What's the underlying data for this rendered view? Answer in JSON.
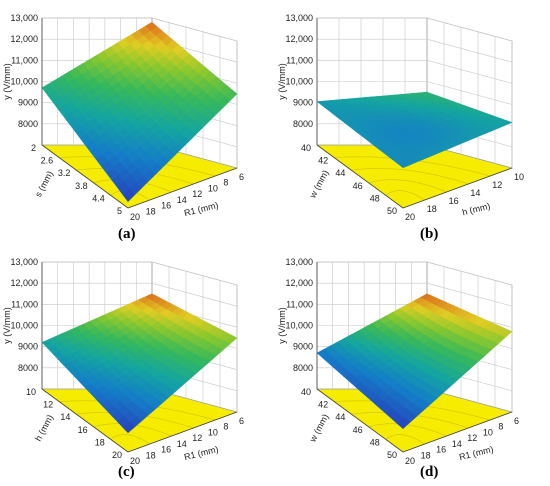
{
  "chart_data": [
    {
      "panel": "(a)",
      "type": "surface3d",
      "zlabel": "y (V/mm)",
      "zticks": [
        "8000",
        "9000",
        "10,000",
        "11,000",
        "12,000",
        "13,000"
      ],
      "zlim": [
        7000,
        13000
      ],
      "front_axis": {
        "label": "s (mm)",
        "ticks": [
          "2",
          "2.6",
          "3.2",
          "3.8",
          "4.4",
          "5"
        ]
      },
      "right_axis": {
        "label": "R1 (mm)",
        "ticks": [
          "6",
          "8",
          "10",
          "12",
          "14",
          "16",
          "18",
          "20"
        ]
      },
      "surface": {
        "corner_back": 12800,
        "corner_left": 9700,
        "corner_front": 7300,
        "corner_right": 10500
      },
      "floor_color": "#f5ec00"
    },
    {
      "panel": "(b)",
      "type": "surface3d",
      "zlabel": "y (V/mm)",
      "zticks": [
        "8000",
        "9000",
        "10,000",
        "11,000",
        "12,000",
        "13,000"
      ],
      "zlim": [
        7000,
        13000
      ],
      "front_axis": {
        "label": "w (mm)",
        "ticks": [
          "40",
          "42",
          "44",
          "46",
          "48",
          "50"
        ]
      },
      "right_axis": {
        "label": "h (mm)",
        "ticks": [
          "10",
          "12",
          "14",
          "16",
          "18",
          "20"
        ]
      },
      "surface": {
        "corner_back": 9500,
        "corner_left": 9050,
        "corner_front": 8900,
        "corner_right": 9150
      },
      "floor_color": "#f5ec00"
    },
    {
      "panel": "(c)",
      "type": "surface3d",
      "zlabel": "y (V/mm)",
      "zticks": [
        "8000",
        "9000",
        "10,000",
        "11,000",
        "12,000",
        "13,000"
      ],
      "zlim": [
        7000,
        13000
      ],
      "front_axis": {
        "label": "h (mm)",
        "ticks": [
          "10",
          "12",
          "14",
          "16",
          "18",
          "20"
        ]
      },
      "right_axis": {
        "label": "R1 (mm)",
        "ticks": [
          "6",
          "8",
          "10",
          "12",
          "14",
          "16",
          "18",
          "20"
        ]
      },
      "surface": {
        "corner_back": 11500,
        "corner_left": 9200,
        "corner_front": 7900,
        "corner_right": 10500
      },
      "floor_color": "#f5ec00"
    },
    {
      "panel": "(d)",
      "type": "surface3d",
      "zlabel": "y (V/mm)",
      "zticks": [
        "8000",
        "9000",
        "10,000",
        "11,000",
        "12,000",
        "13,000"
      ],
      "zlim": [
        7000,
        13000
      ],
      "front_axis": {
        "label": "w (mm)",
        "ticks": [
          "40",
          "42",
          "44",
          "46",
          "48",
          "50"
        ]
      },
      "right_axis": {
        "label": "R1 (mm)",
        "ticks": [
          "6",
          "8",
          "10",
          "12",
          "14",
          "16",
          "18",
          "20"
        ]
      },
      "surface": {
        "corner_back": 11500,
        "corner_left": 8700,
        "corner_front": 8100,
        "corner_right": 10800
      },
      "floor_color": "#f5ec00"
    }
  ]
}
